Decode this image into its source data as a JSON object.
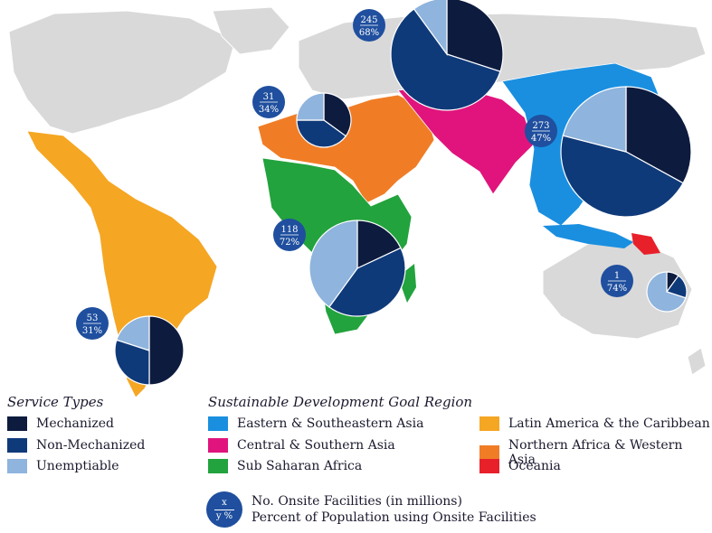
{
  "legend": {
    "service_title": "Service Types",
    "service_types": [
      {
        "label": "Mechanized",
        "color": "#0d1b3e"
      },
      {
        "label": "Non-Mechanized",
        "color": "#0f3a7a"
      },
      {
        "label": "Unemptiable",
        "color": "#8fb4dd"
      }
    ],
    "region_title": "Sustainable Development Goal Region",
    "regions": [
      {
        "label": "Eastern & Southeastern Asia",
        "color": "#1a8fe0"
      },
      {
        "label": "Latin America & the Caribbean",
        "color": "#f5a623"
      },
      {
        "label": "Central & Southern Asia",
        "color": "#e0147c"
      },
      {
        "label": "Northern Africa & Western Asia",
        "color": "#f07d26"
      },
      {
        "label": "Sub Saharan Africa",
        "color": "#22a33d"
      },
      {
        "label": "Oceania",
        "color": "#e8202a"
      }
    ],
    "key": {
      "x": "x",
      "y": "y %",
      "line1": "No. Onsite Facilities (in millions)",
      "line2": "Percent of Population using Onsite Facilities"
    }
  },
  "regions_data": [
    {
      "id": "latam",
      "count": "53",
      "percent": "31%",
      "mechanized": 0.5,
      "non_mechanized": 0.3,
      "unemptiable": 0.2
    },
    {
      "id": "nafrica",
      "count": "31",
      "percent": "34%",
      "mechanized": 0.35,
      "non_mechanized": 0.4,
      "unemptiable": 0.25
    },
    {
      "id": "ssa",
      "count": "118",
      "percent": "72%",
      "mechanized": 0.18,
      "non_mechanized": 0.42,
      "unemptiable": 0.4
    },
    {
      "id": "csasia",
      "count": "245",
      "percent": "68%",
      "mechanized": 0.3,
      "non_mechanized": 0.6,
      "unemptiable": 0.1
    },
    {
      "id": "easia",
      "count": "273",
      "percent": "47%",
      "mechanized": 0.33,
      "non_mechanized": 0.46,
      "unemptiable": 0.21
    },
    {
      "id": "oceania",
      "count": "1",
      "percent": "74%",
      "mechanized": 0.1,
      "non_mechanized": 0.2,
      "unemptiable": 0.7
    }
  ]
}
